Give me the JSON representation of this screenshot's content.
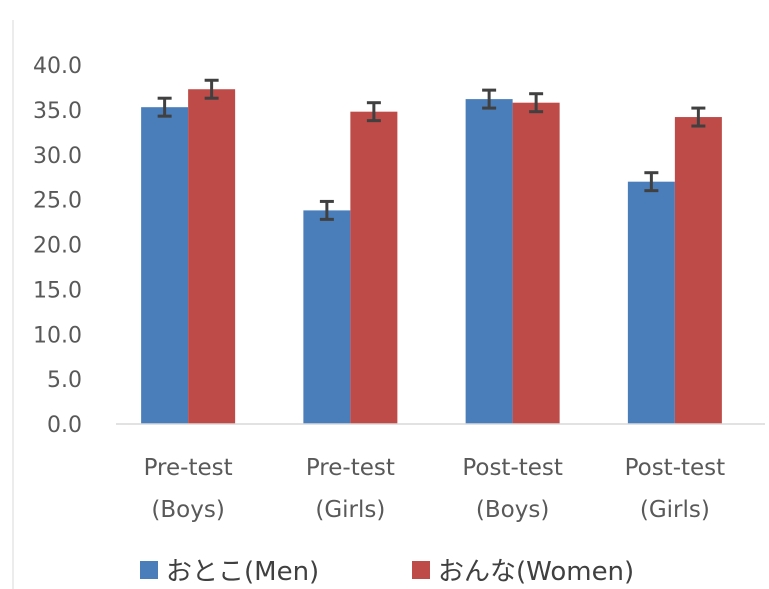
{
  "chart_data": {
    "type": "bar",
    "categories": [
      [
        "Pre-test",
        "(Boys)"
      ],
      [
        "Pre-test",
        "(Girls)"
      ],
      [
        "Post-test",
        "(Boys)"
      ],
      [
        "Post-test",
        "(Girls)"
      ]
    ],
    "series": [
      {
        "name": "おとこ(Men)",
        "color": "#4a7ebb",
        "values": [
          35.3,
          23.8,
          36.2,
          27.0
        ],
        "errors": [
          1.0,
          1.0,
          1.0,
          1.0
        ]
      },
      {
        "name": "おんな(Women)",
        "color": "#be4b48",
        "values": [
          37.3,
          34.8,
          35.8,
          34.2
        ],
        "errors": [
          1.0,
          1.0,
          1.0,
          1.0
        ]
      }
    ],
    "ylim": [
      0,
      40
    ],
    "yticks": [
      "0.0",
      "5.0",
      "10.0",
      "15.0",
      "20.0",
      "25.0",
      "30.0",
      "35.0",
      "40.0"
    ],
    "grid": false,
    "legend": "bottom",
    "error_bar_color": "#404040",
    "axis_color": "#d9d9d9"
  }
}
